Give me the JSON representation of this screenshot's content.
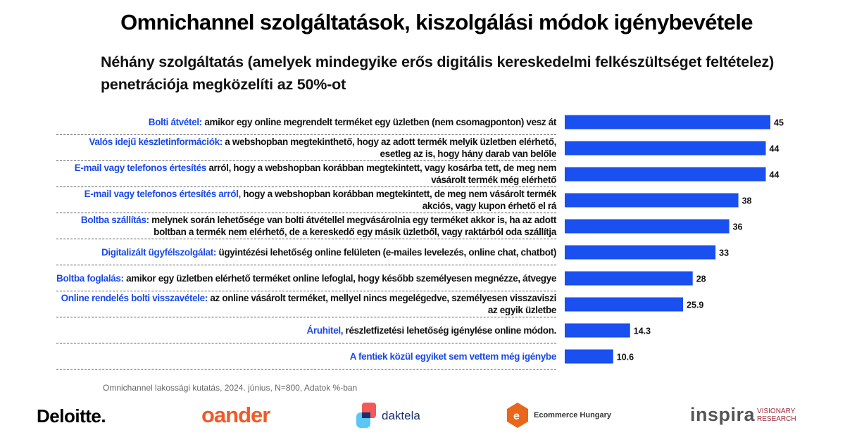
{
  "title": "Omnichannel szolgáltatások, kiszolgálási módok igénybevétele",
  "subtitle": "Néhány szolgáltatás (amelyek mindegyike erős digitális kereskedelmi felkészültséget feltételez) penetrációja megközelíti az 50%-ot",
  "chart_data": {
    "type": "bar",
    "orientation": "horizontal",
    "bar_color": "#1a4ff0",
    "categories": [
      {
        "highlight": "Bolti átvétel:",
        "text": " amikor egy online megrendelt terméket egy üzletben (nem csomagponton) vesz át"
      },
      {
        "highlight": "Valós idejű készletinformációk:",
        "text": " a webshopban megtekinthető, hogy az adott termék melyik üzletben elérhető, esetleg az is, hogy hány darab van belőle"
      },
      {
        "highlight": "E-mail vagy telefonos értesítés",
        "text": " arról, hogy a webshopban korábban megtekintett, vagy kosárba tett, de meg nem vásárolt termék még elérhető"
      },
      {
        "highlight": "E-mail vagy telefonos értesítés arról,",
        "text": " hogy a webshopban korábban megtekintett, de meg nem vásárolt termék akciós, vagy kupon érhető el rá"
      },
      {
        "highlight": "Boltba szállítás:",
        "text": " melynek során lehetősége van bolti átvétellel megvásárolnia egy terméket akkor is, ha az adott boltban a termék nem elérhető, de a kereskedő egy másik üzletből, vagy raktárból oda szállítja"
      },
      {
        "highlight": "Digitalizált ügyfélszolgálat:",
        "text": " ügyintézési lehetőség online felületen (e-mailes levelezés, online chat, chatbot)"
      },
      {
        "highlight": "Boltba foglalás:",
        "text": " amikor egy üzletben elérhető terméket online lefoglal, hogy később személyesen megnézze, átvegye"
      },
      {
        "highlight": "Online rendelés bolti visszavétele:",
        "text": " az online vásárolt terméket, mellyel nincs megelégedve, személyesen visszaviszi az egyik üzletbe"
      },
      {
        "highlight": "Áruhitel,",
        "text": " részletfizetési lehetőség igénylése online módon."
      },
      {
        "highlight": "A fentiek közül egyiket sem vettem még igénybe",
        "text": ""
      }
    ],
    "values": [
      45,
      44,
      44,
      38,
      36,
      33,
      28,
      25.9,
      14.3,
      10.6
    ],
    "value_labels": [
      "45",
      "44",
      "44",
      "38",
      "36",
      "33",
      "28",
      "25.9",
      "14.3",
      "10.6"
    ],
    "xlim": [
      0,
      50
    ],
    "unit": "%"
  },
  "source": "Omnichannel lakossági kutatás, 2024. június, N=800, Adatok %-ban",
  "logos": [
    "Deloitte.",
    "oander",
    "daktela",
    "Ecommerce Hungary",
    "inspira",
    "VISIONARY RESEARCH"
  ]
}
